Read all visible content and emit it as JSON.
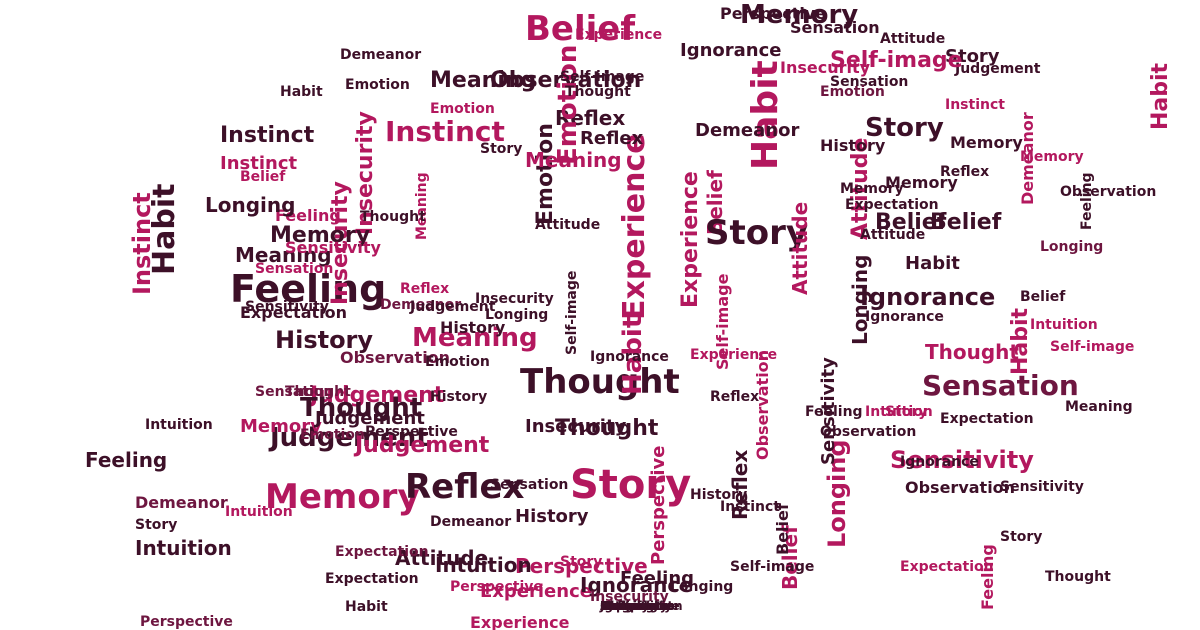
{
  "image": {
    "colors": {
      "primary": "#b3185e",
      "dark": "#6e1640",
      "darker": "#3d1028",
      "light": "#d9508a",
      "background": "#ffffff"
    },
    "words": [
      "Memory",
      "Belief",
      "Habit",
      "Meaning",
      "Feeling",
      "Sensitivity",
      "Longing",
      "Thought",
      "Judgement",
      "Observation",
      "Demeanor",
      "History",
      "Self-image",
      "Expectation",
      "Intuition",
      "Instinct",
      "Reflex",
      "Experience",
      "Emotion",
      "Story",
      "Perspective",
      "Insecurity",
      "Attitude",
      "Ignorance",
      "Sensation",
      "Memory",
      "Belief",
      "Habit",
      "Experience",
      "Story",
      "Thought",
      "Feeling",
      "Meaning",
      "Memory",
      "Reflex",
      "Story",
      "Instinct",
      "Sensation",
      "Sensitivity",
      "Judgement",
      "Intuition",
      "Ignorance",
      "Observation",
      "Emotion",
      "Insecurity",
      "Attitude",
      "History",
      "Perspective",
      "Expectation",
      "Demeanor",
      "Self-image",
      "Longing",
      "Reflex",
      "Thought",
      "Habit",
      "Belief",
      "Story",
      "Experience",
      "Memory",
      "Feeling",
      "Instinct",
      "Meaning",
      "Emotion",
      "Sensation",
      "Judgement",
      "Observation",
      "Ignorance",
      "Insecurity",
      "Attitude",
      "Perspective",
      "Longing",
      "History",
      "Self-image",
      "Demeanor",
      "Expectation",
      "Intuition",
      "Reflex",
      "Sensitivity",
      "Thought",
      "Belief",
      "Habit",
      "Story",
      "Memory",
      "Feeling",
      "Emotion",
      "Story",
      "Experience",
      "Observation",
      "Judgement",
      "Instinct",
      "Meaning",
      "Habit",
      "Thought",
      "Reflex",
      "Belief",
      "Insecurity",
      "Attitude",
      "Sensation",
      "Ignorance",
      "History",
      "Longing",
      "Perspective",
      "Demeanor",
      "Self-image",
      "Intuition",
      "Expectation",
      "Emotion",
      "Sensitivity",
      "Memory",
      "Story",
      "Feeling",
      "Experience",
      "Belief",
      "Habit",
      "Thought",
      "Meaning",
      "Reflex",
      "Instinct",
      "Judgement",
      "Observation",
      "Ignorance",
      "Insecurity",
      "Attitude",
      "Sensation",
      "Longing",
      "History",
      "Perspective",
      "Demeanor",
      "Self-image",
      "Intuition",
      "Expectation",
      "Emotion",
      "Story",
      "Memory",
      "Belief",
      "Habit",
      "Feeling",
      "Thought",
      "Sensitivity",
      "Reflex",
      "Experience",
      "Meaning",
      "Instinct",
      "Judgement",
      "Observation",
      "Ignorance",
      "Insecurity",
      "Attitude",
      "Sensation",
      "Longing",
      "History",
      "Perspective",
      "Demeanor",
      "Self-image",
      "Intuition",
      "Expectation",
      "Emotion",
      "Story",
      "Belief",
      "Memory",
      "Habit",
      "Thought",
      "Feeling",
      "Reflex",
      "Experience",
      "Meaning",
      "Sensitivity",
      "Instinct",
      "Judgement",
      "Observation",
      "Ignorance",
      "Insecurity",
      "Attitude",
      "Sensation",
      "Longing",
      "History",
      "Perspective",
      "Demeanor"
    ]
  }
}
